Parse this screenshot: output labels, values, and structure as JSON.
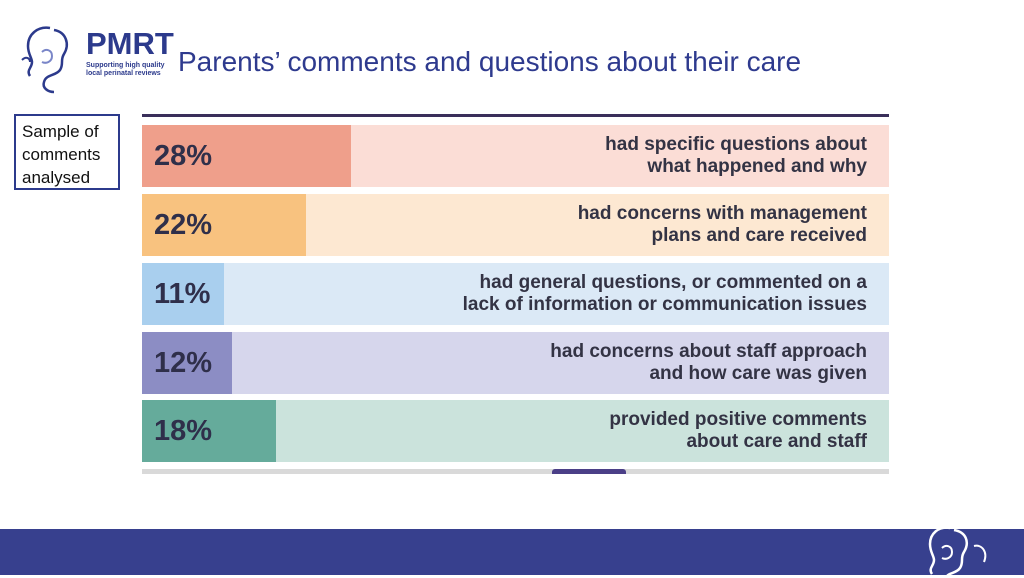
{
  "logo": {
    "word": "PMRT",
    "tagline_line1": "Supporting high quality",
    "tagline_line2": "local perinatal reviews",
    "icon": "mother-baby-silhouette-icon"
  },
  "slide": {
    "title": "Parents’ comments and questions about their care"
  },
  "sample_box": {
    "line1": "Sample of",
    "line2": "comments",
    "line3": "analysed"
  },
  "chart_data": {
    "type": "bar",
    "orientation": "horizontal",
    "xlim": [
      0,
      100
    ],
    "categories": [
      "had specific questions about what happened and why",
      "had concerns with management plans and care received",
      "had general questions, or commented on a lack of information or communication issues",
      "had concerns about staff approach and how care was given",
      "provided positive comments about care and staff"
    ],
    "values": [
      28,
      22,
      11,
      12,
      18
    ],
    "value_labels": [
      "28%",
      "22%",
      "11%",
      "12%",
      "18%"
    ],
    "label_lines": [
      [
        "had specific questions about",
        "what happened and why"
      ],
      [
        "had concerns with management",
        "plans and care received"
      ],
      [
        "had general questions, or commented on a",
        "lack of information or communication issues"
      ],
      [
        "had concerns about staff approach",
        "and how care was given"
      ],
      [
        "provided positive comments",
        "about care and staff"
      ]
    ],
    "fill_colors": [
      "#ef9f8b",
      "#f8c27f",
      "#a9cfee",
      "#8c8dc4",
      "#65ab9b"
    ],
    "track_colors": [
      "#fbddd6",
      "#fde8d2",
      "#dbe9f6",
      "#d6d6ec",
      "#cbe3dc"
    ]
  },
  "colors": {
    "brand": "#2c3a8c",
    "footer": "#37408e"
  }
}
